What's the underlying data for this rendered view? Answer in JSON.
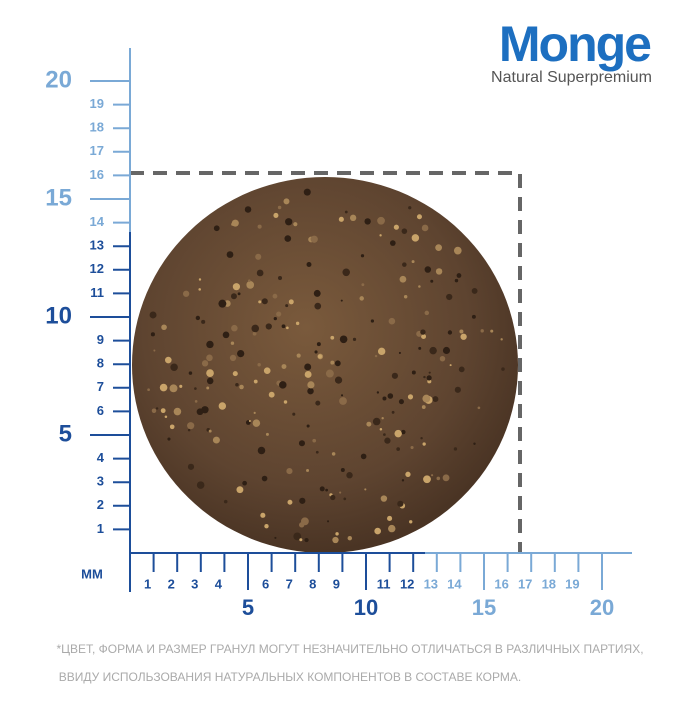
{
  "brand": {
    "name": "Monge",
    "tagline": "Natural Superpremium"
  },
  "ruler": {
    "unit": "ММ",
    "colors": {
      "dark": "#1d4e9a",
      "light": "#7aa9d6"
    },
    "vertical": {
      "minor_dark": [
        1,
        2,
        3,
        4,
        6,
        7,
        8,
        9,
        11,
        12,
        13
      ],
      "major_dark": [
        5,
        10
      ],
      "minor_light": [
        14,
        16,
        17,
        18,
        19
      ],
      "major_light": [
        15,
        20
      ]
    },
    "horizontal": {
      "minor_dark": [
        1,
        2,
        3,
        4,
        6,
        7,
        8,
        9,
        11,
        12
      ],
      "major_dark": [
        5,
        10
      ],
      "minor_light": [
        13,
        14,
        16,
        17,
        18,
        19
      ],
      "major_light": [
        15,
        20
      ]
    }
  },
  "footnote": [
    "*ЦВЕТ, ФОРМА И РАЗМЕР ГРАНУЛ МОГУТ НЕЗНАЧИТЕЛЬНО ОТЛИЧАТЬСЯ В РАЗЛИЧНЫХ ПАРТИЯХ,",
    "ВВИДУ ИСПОЛЬЗОВАНИЯ НАТУРАЛЬНЫХ КОМПОНЕНТОВ В СОСТАВЕ КОРМА."
  ]
}
